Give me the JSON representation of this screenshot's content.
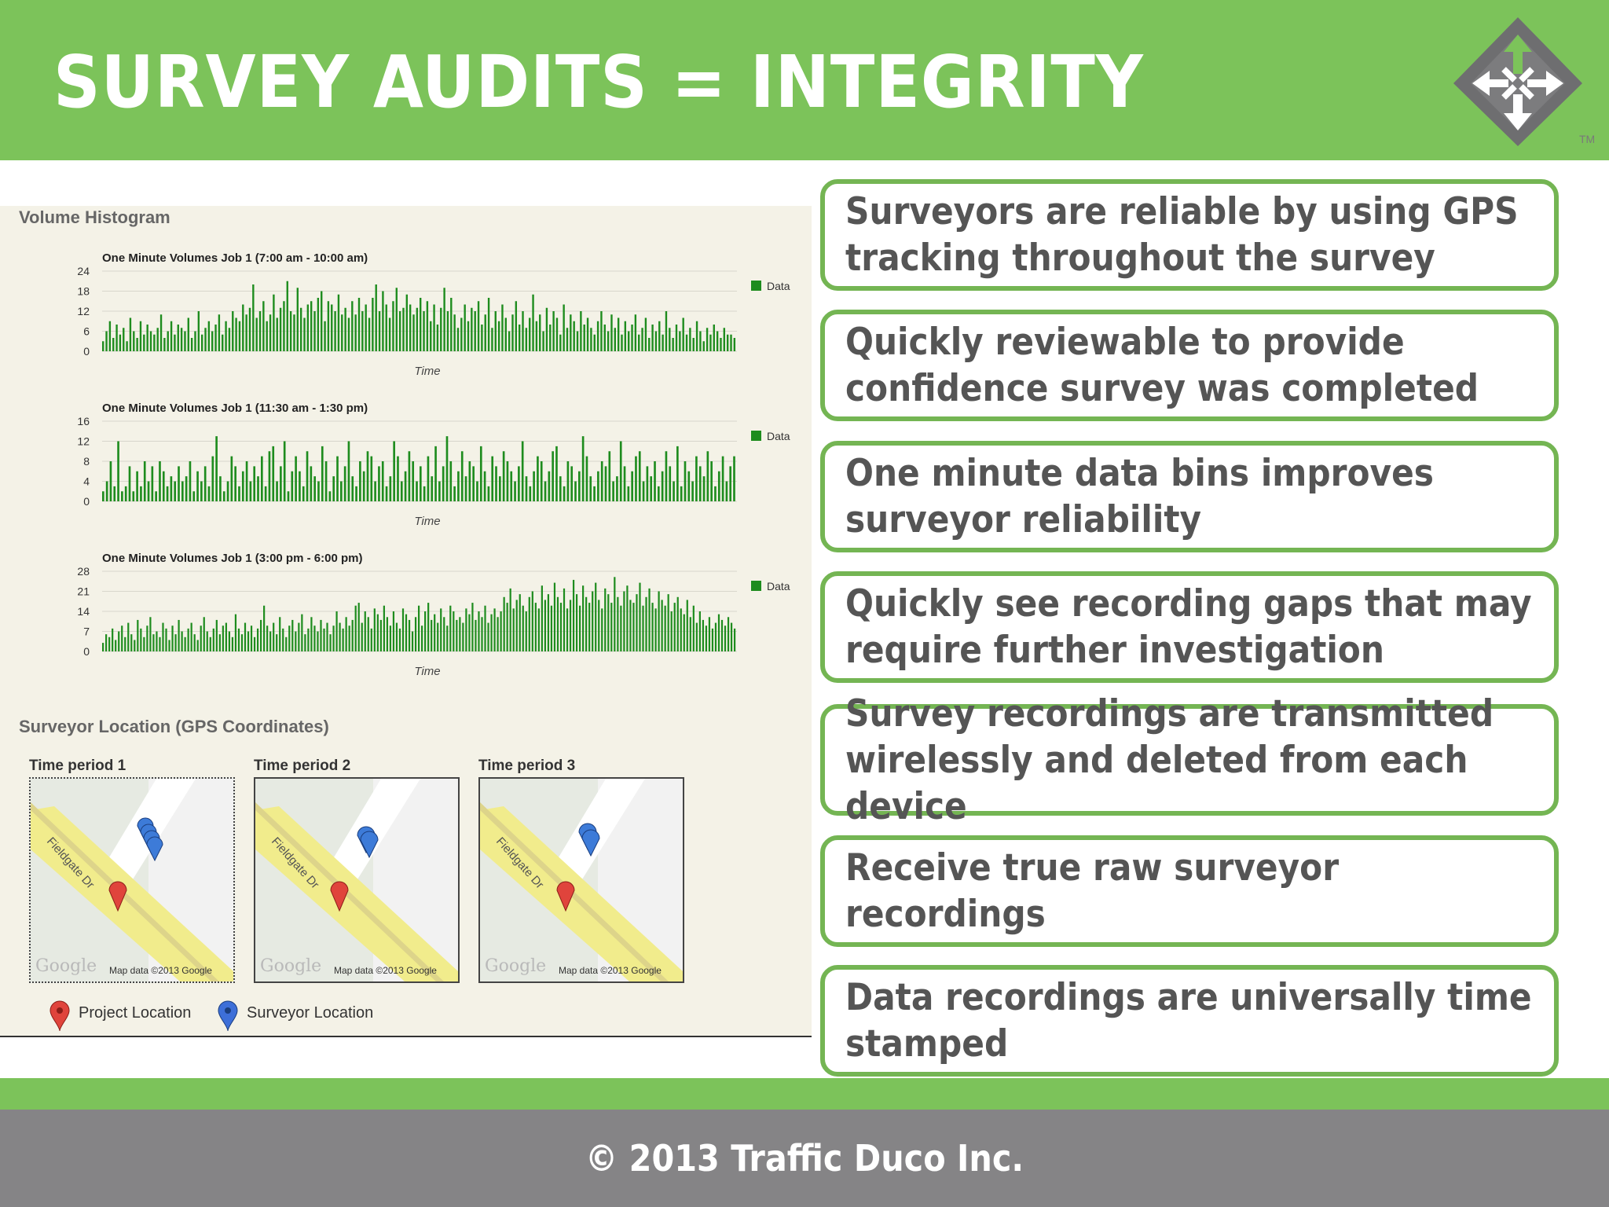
{
  "title": "SURVEY AUDITS = INTEGRITY",
  "logo": {
    "icon": "traffic-arrows-logo-icon",
    "trademark": "TM",
    "colors": {
      "gray": "#6e6e70",
      "green": "#7cc35a"
    }
  },
  "panel": {
    "histogram_label": "Volume Histogram",
    "location_label": "Surveyor Location (GPS Coordinates)"
  },
  "chart_data": [
    {
      "type": "bar",
      "title": "One Minute Volumes Job 1 (7:00 am - 10:00 am)",
      "xlabel": "Time",
      "ylabel": "",
      "ylim": [
        0,
        24
      ],
      "yticks": [
        0,
        6,
        12,
        18,
        24
      ],
      "legend": "Data",
      "color": "#1e8c1e",
      "series": [
        {
          "name": "Data",
          "values": [
            3,
            6,
            9,
            4,
            8,
            5,
            7,
            3,
            10,
            6,
            4,
            9,
            5,
            8,
            6,
            5,
            7,
            11,
            4,
            6,
            9,
            5,
            8,
            7,
            6,
            10,
            4,
            6,
            12,
            5,
            7,
            9,
            6,
            8,
            11,
            5,
            9,
            7,
            12,
            10,
            9,
            14,
            11,
            13,
            20,
            10,
            12,
            15,
            9,
            11,
            17,
            10,
            13,
            15,
            21,
            12,
            11,
            19,
            13,
            10,
            14,
            15,
            12,
            16,
            18,
            9,
            15,
            14,
            12,
            17,
            11,
            13,
            10,
            15,
            11,
            16,
            12,
            14,
            10,
            16,
            20,
            12,
            18,
            14,
            10,
            15,
            19,
            12,
            13,
            17,
            14,
            11,
            13,
            16,
            12,
            15,
            9,
            14,
            8,
            13,
            19,
            12,
            16,
            11,
            7,
            10,
            14,
            9,
            13,
            12,
            15,
            8,
            11,
            16,
            7,
            12,
            9,
            14,
            10,
            6,
            11,
            15,
            8,
            12,
            7,
            10,
            17,
            9,
            11,
            6,
            13,
            8,
            12,
            10,
            5,
            14,
            7,
            11,
            9,
            6,
            12,
            8,
            10,
            7,
            5,
            9,
            12,
            8,
            6,
            11,
            7,
            10,
            5,
            9,
            6,
            8,
            11,
            5,
            7,
            10,
            4,
            8,
            6,
            9,
            5,
            12,
            7,
            4,
            8,
            6,
            10,
            5,
            7,
            4,
            9,
            6,
            3,
            7,
            5,
            8,
            6,
            4,
            7,
            5,
            5,
            4
          ]
        }
      ]
    },
    {
      "type": "bar",
      "title": "One Minute Volumes Job 1 (11:30 am - 1:30 pm)",
      "xlabel": "Time",
      "ylabel": "",
      "ylim": [
        0,
        16
      ],
      "yticks": [
        0,
        4,
        8,
        12,
        16
      ],
      "legend": "Data",
      "color": "#1e8c1e",
      "series": [
        {
          "name": "Data",
          "values": [
            2,
            4,
            8,
            3,
            12,
            2,
            3,
            7,
            2,
            6,
            3,
            8,
            4,
            7,
            2,
            8,
            6,
            3,
            5,
            4,
            7,
            4,
            5,
            8,
            2,
            6,
            4,
            7,
            3,
            9,
            13,
            5,
            2,
            4,
            9,
            7,
            3,
            6,
            8,
            4,
            7,
            5,
            9,
            3,
            10,
            11,
            4,
            7,
            12,
            2,
            6,
            9,
            6,
            3,
            10,
            7,
            5,
            4,
            11,
            8,
            2,
            5,
            9,
            4,
            7,
            12,
            5,
            3,
            8,
            6,
            10,
            9,
            4,
            7,
            8,
            3,
            5,
            12,
            9,
            4,
            6,
            10,
            8,
            4,
            7,
            3,
            9,
            5,
            11,
            4,
            7,
            13,
            8,
            3,
            6,
            10,
            5,
            8,
            7,
            4,
            11,
            6,
            3,
            9,
            7,
            5,
            10,
            8,
            6,
            4,
            7,
            12,
            5,
            3,
            6,
            9,
            8,
            4,
            6,
            10,
            11,
            5,
            3,
            8,
            7,
            4,
            6,
            13,
            9,
            5,
            3,
            6,
            8,
            7,
            10,
            4,
            5,
            12,
            7,
            3,
            6,
            9,
            10,
            4,
            7,
            5,
            8,
            3,
            6,
            10,
            7,
            4,
            11,
            3,
            8,
            6,
            4,
            9,
            7,
            5,
            10,
            8,
            3,
            6,
            9,
            4,
            7,
            9
          ]
        }
      ]
    },
    {
      "type": "bar",
      "title": "One Minute Volumes Job 1 (3:00 pm - 6:00 pm)",
      "xlabel": "Time",
      "ylabel": "",
      "ylim": [
        0,
        28
      ],
      "yticks": [
        0,
        7,
        14,
        21,
        28
      ],
      "legend": "Data",
      "color": "#1e8c1e",
      "series": [
        {
          "name": "Data",
          "values": [
            3,
            6,
            5,
            8,
            4,
            7,
            9,
            5,
            10,
            6,
            4,
            11,
            8,
            5,
            9,
            12,
            6,
            7,
            5,
            10,
            8,
            4,
            9,
            6,
            11,
            7,
            5,
            8,
            10,
            6,
            4,
            9,
            12,
            7,
            5,
            8,
            11,
            6,
            9,
            10,
            7,
            5,
            13,
            8,
            6,
            10,
            7,
            9,
            5,
            8,
            11,
            16,
            9,
            7,
            10,
            6,
            12,
            8,
            5,
            9,
            11,
            7,
            10,
            13,
            6,
            8,
            12,
            9,
            7,
            11,
            8,
            10,
            6,
            9,
            14,
            10,
            8,
            12,
            9,
            11,
            16,
            17,
            10,
            14,
            12,
            8,
            15,
            13,
            11,
            16,
            12,
            9,
            14,
            10,
            8,
            15,
            13,
            11,
            7,
            12,
            16,
            9,
            14,
            17,
            11,
            13,
            10,
            15,
            12,
            9,
            16,
            14,
            11,
            12,
            10,
            15,
            13,
            17,
            11,
            14,
            12,
            16,
            10,
            13,
            15,
            12,
            14,
            19,
            17,
            22,
            15,
            18,
            20,
            16,
            14,
            19,
            21,
            17,
            15,
            23,
            18,
            20,
            16,
            24,
            19,
            17,
            22,
            15,
            18,
            25,
            20,
            16,
            23,
            19,
            17,
            21,
            24,
            18,
            15,
            22,
            20,
            17,
            26,
            19,
            16,
            21,
            23,
            18,
            17,
            20,
            24,
            16,
            19,
            22,
            17,
            15,
            21,
            18,
            16,
            20,
            14,
            17,
            19,
            15,
            13,
            18,
            12,
            16,
            10,
            14,
            11,
            9,
            12,
            8,
            10,
            13,
            11,
            9,
            12,
            10,
            8
          ]
        }
      ]
    }
  ],
  "maps": [
    {
      "label": "Time period 1",
      "street": "Fieldgate Dr",
      "google": "Google",
      "credit": "Map data ©2013 Google"
    },
    {
      "label": "Time period 2",
      "street": "Fieldgate Dr",
      "google": "Google",
      "credit": "Map data ©2013 Google"
    },
    {
      "label": "Time period 3",
      "street": "Fieldgate Dr",
      "google": "Google",
      "credit": "Map data ©2013 Google"
    }
  ],
  "legend": {
    "project": "Project Location",
    "surveyor": "Surveyor Location",
    "project_color": "#e0443c",
    "surveyor_color": "#3d6fd8"
  },
  "bullets": [
    "Surveyors are reliable by using GPS tracking throughout the survey",
    "Quickly reviewable to provide confidence survey was completed",
    "One minute data bins improves surveyor reliability",
    "Quickly see recording gaps that may require further investigation",
    "Survey recordings are transmitted wirelessly and deleted from each device",
    "Receive true raw surveyor recordings",
    "Data recordings are universally time stamped"
  ],
  "footer": "© 2013 Traffic Duco Inc."
}
